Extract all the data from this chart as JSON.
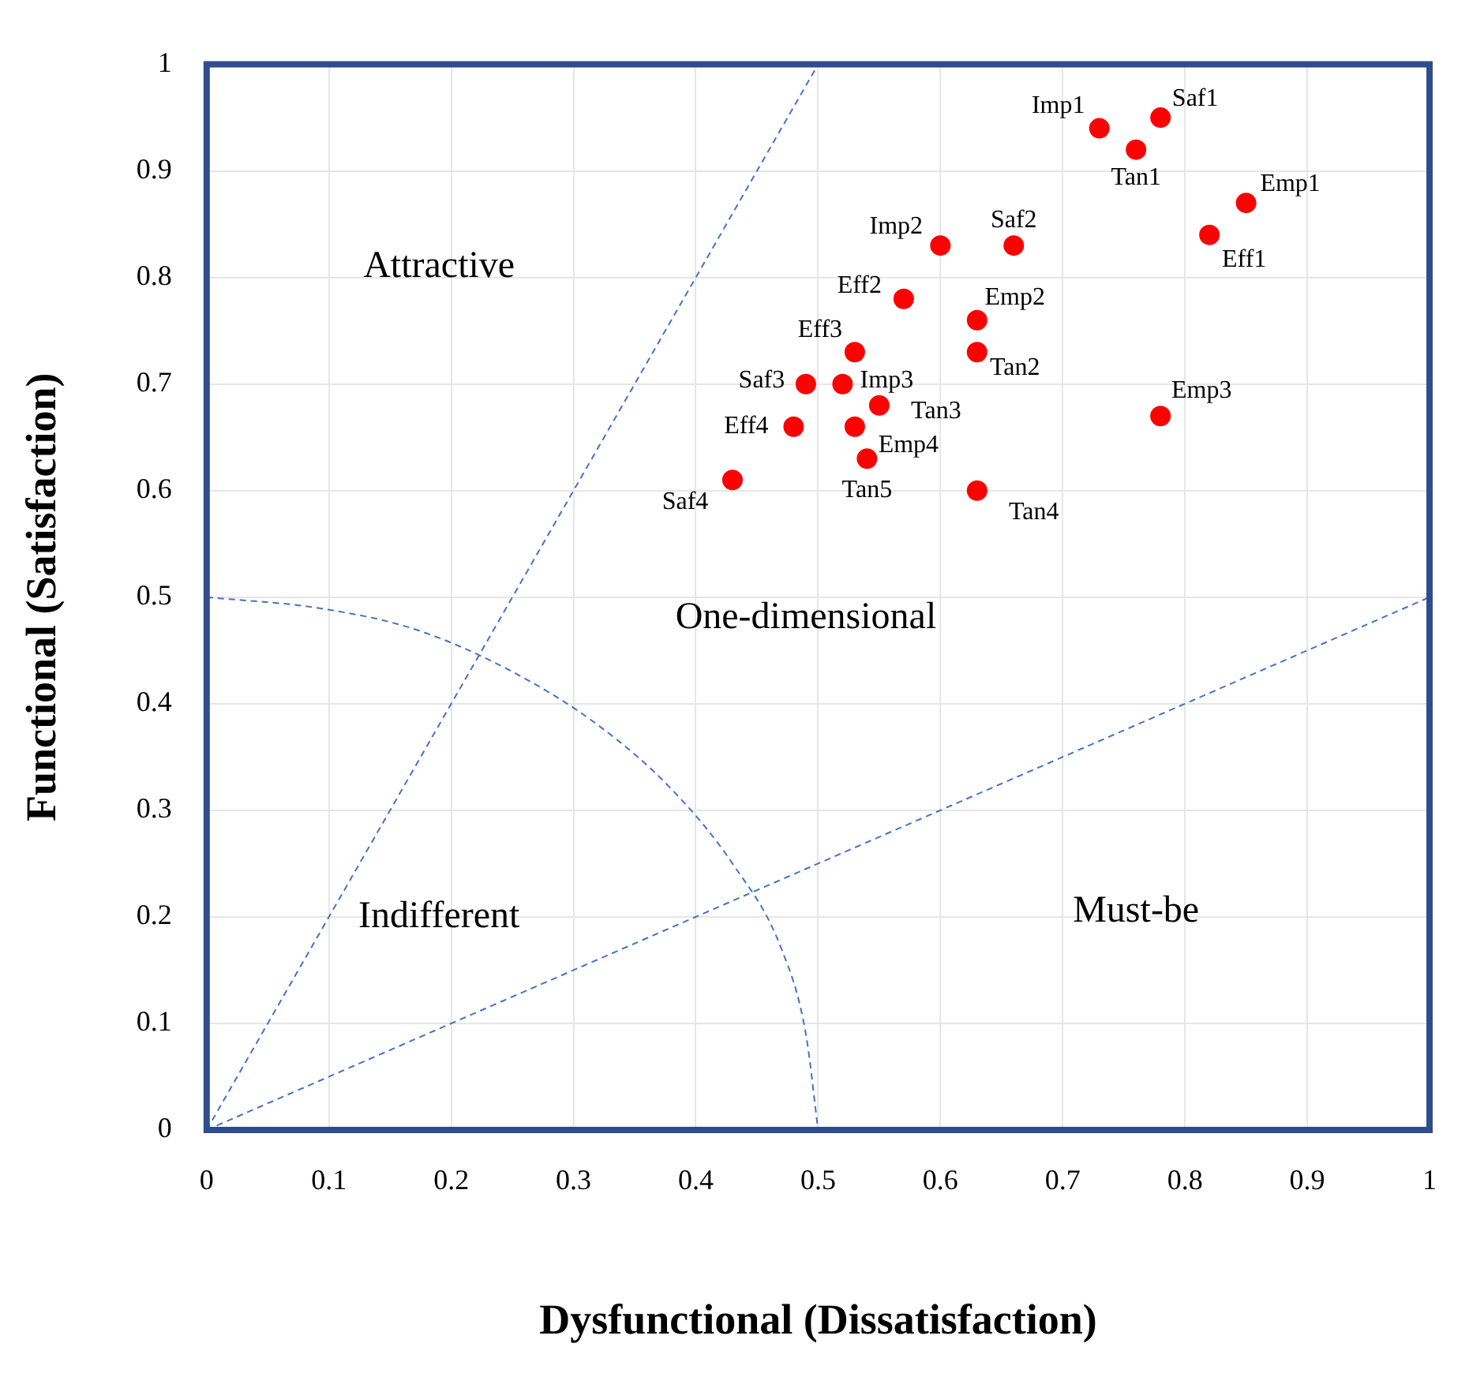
{
  "chart_data": {
    "type": "scatter",
    "xlabel": "Dysfunctional (Dissatisfaction)",
    "ylabel": "Functional (Satisfaction)",
    "xlim": [
      0,
      1
    ],
    "ylim": [
      0,
      1
    ],
    "xticks": [
      0,
      0.1,
      0.2,
      0.3,
      0.4,
      0.5,
      0.6,
      0.7,
      0.8,
      0.9,
      1
    ],
    "yticks": [
      0,
      0.1,
      0.2,
      0.3,
      0.4,
      0.5,
      0.6,
      0.7,
      0.8,
      0.9,
      1
    ],
    "grid": true,
    "legend": false,
    "series": [
      {
        "type": "line",
        "color": "#4472c4",
        "line_style": "dashed",
        "marker": "none",
        "x": [
          0,
          0.5
        ],
        "values": [
          0,
          1
        ]
      },
      {
        "type": "line",
        "color": "#4472c4",
        "line_style": "dashed",
        "marker": "none",
        "x": [
          0,
          1
        ],
        "values": [
          0,
          0.5
        ]
      },
      {
        "type": "line",
        "color": "#4472c4",
        "line_style": "dashed",
        "marker": "none",
        "x": [
          0,
          0.09,
          0.17,
          0.25,
          0.32,
          0.38,
          0.43,
          0.47,
          0.49,
          0.5
        ],
        "values": [
          0.5,
          0.49,
          0.47,
          0.43,
          0.38,
          0.32,
          0.25,
          0.17,
          0.09,
          0
        ]
      },
      {
        "color": "#ff0000",
        "marker": "circle",
        "x": [
          0.73,
          0.78,
          0.76,
          0.85,
          0.82,
          0.6,
          0.66,
          0.57,
          0.63,
          0.63,
          0.53,
          0.49,
          0.52,
          0.55,
          0.53,
          0.48,
          0.54,
          0.43,
          0.63,
          0.78
        ],
        "values": [
          0.94,
          0.95,
          0.92,
          0.87,
          0.84,
          0.83,
          0.83,
          0.78,
          0.76,
          0.73,
          0.73,
          0.7,
          0.7,
          0.68,
          0.66,
          0.66,
          0.63,
          0.61,
          0.6,
          0.67
        ]
      }
    ],
    "annotations": [
      "Attractive",
      "One-dimensional",
      "Indifferent",
      "Must-be",
      {
        "text": "Imp1",
        "x": 0.73,
        "y": 0.94
      },
      {
        "text": "Saf1",
        "x": 0.78,
        "y": 0.95
      },
      {
        "text": "Tan1",
        "x": 0.76,
        "y": 0.92
      },
      {
        "text": "Emp1",
        "x": 0.85,
        "y": 0.87
      },
      {
        "text": "Eff1",
        "x": 0.82,
        "y": 0.84
      },
      {
        "text": "Imp2",
        "x": 0.6,
        "y": 0.83
      },
      {
        "text": "Saf2",
        "x": 0.66,
        "y": 0.83
      },
      {
        "text": "Eff2",
        "x": 0.57,
        "y": 0.78
      },
      {
        "text": "Emp2",
        "x": 0.63,
        "y": 0.76
      },
      {
        "text": "Tan2",
        "x": 0.63,
        "y": 0.73
      },
      {
        "text": "Eff3",
        "x": 0.53,
        "y": 0.73
      },
      {
        "text": "Saf3",
        "x": 0.49,
        "y": 0.7
      },
      {
        "text": "Imp3",
        "x": 0.52,
        "y": 0.7
      },
      {
        "text": "Tan3",
        "x": 0.55,
        "y": 0.68
      },
      {
        "text": "Emp4",
        "x": 0.53,
        "y": 0.66
      },
      {
        "text": "Eff4",
        "x": 0.48,
        "y": 0.66
      },
      {
        "text": "Tan5",
        "x": 0.54,
        "y": 0.63
      },
      {
        "text": "Saf4",
        "x": 0.43,
        "y": 0.61
      },
      {
        "text": "Tan4",
        "x": 0.63,
        "y": 0.6
      },
      {
        "text": "Emp3",
        "x": 0.78,
        "y": 0.67
      }
    ]
  }
}
